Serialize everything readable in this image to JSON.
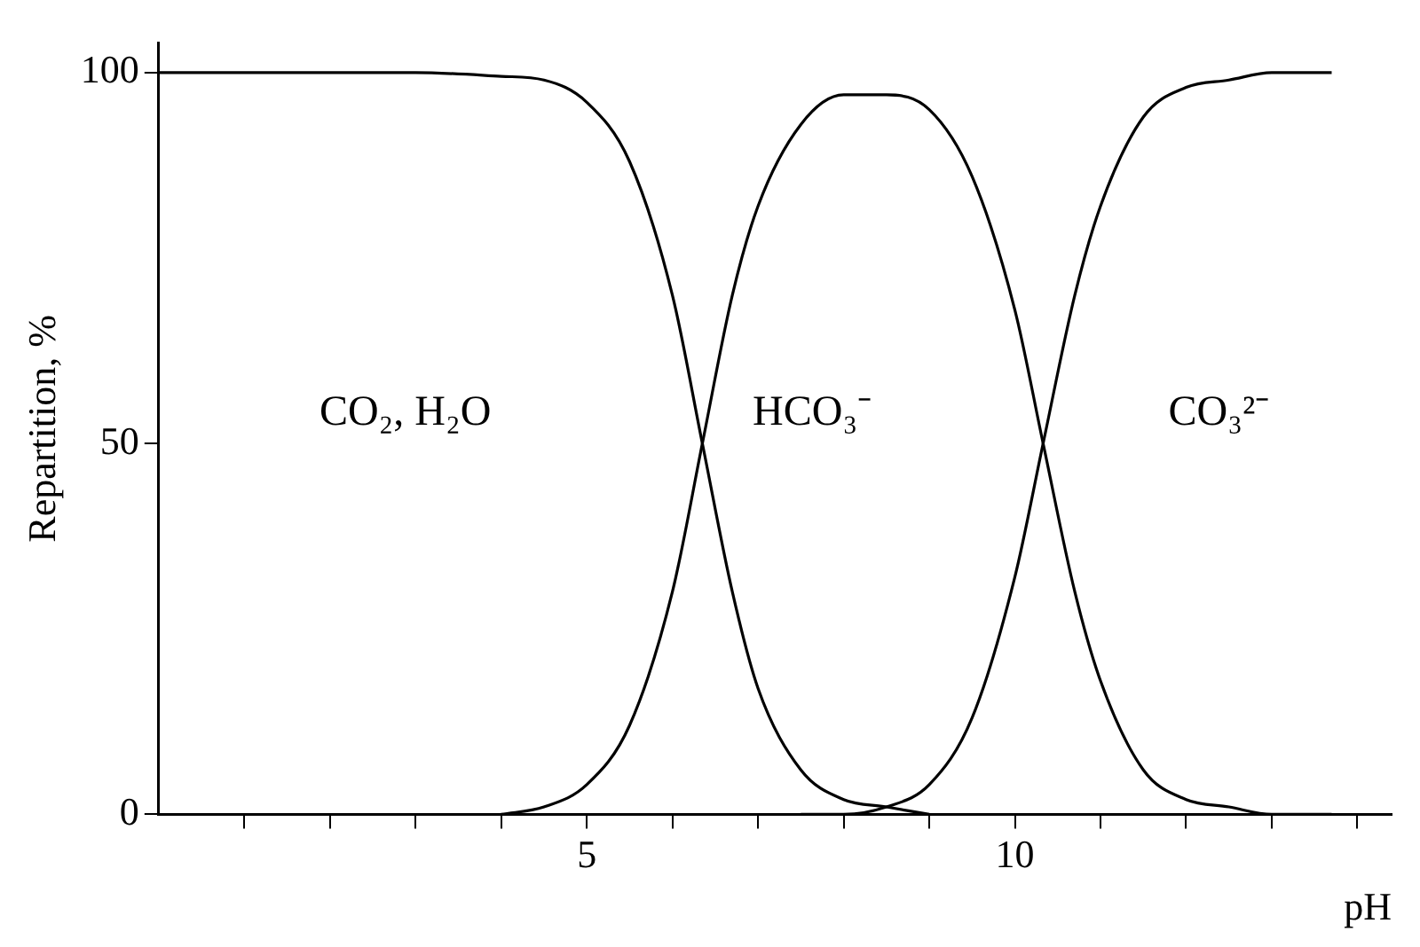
{
  "chart_data": {
    "type": "line",
    "xlabel": "pH",
    "ylabel": "Repartition, %",
    "xlim": [
      0,
      14.4
    ],
    "ylim": [
      0,
      104
    ],
    "xticks": [
      {
        "value": 1,
        "label": null
      },
      {
        "value": 2,
        "label": null
      },
      {
        "value": 3,
        "label": null
      },
      {
        "value": 4,
        "label": null
      },
      5,
      {
        "value": 6,
        "label": null
      },
      {
        "value": 7,
        "label": null
      },
      {
        "value": 8,
        "label": null
      },
      {
        "value": 9,
        "label": null
      },
      10,
      {
        "value": 11,
        "label": null
      },
      {
        "value": 12,
        "label": null
      },
      {
        "value": 13,
        "label": null
      },
      {
        "value": 14,
        "label": null
      }
    ],
    "yticks": [
      0,
      50,
      100
    ],
    "grid": false,
    "legend": false,
    "marker": "none",
    "line_style": "solid",
    "series": [
      {
        "color": "#000000",
        "x": [
          0,
          1,
          2,
          3,
          4,
          4.5,
          5,
          5.5,
          6,
          6.35,
          6.7,
          7,
          7.5,
          8,
          8.5,
          9
        ],
        "values": [
          100,
          100,
          100,
          100,
          99.5,
          99,
          96,
          88,
          70,
          50,
          30,
          17,
          6,
          2,
          1,
          0
        ]
      },
      {
        "color": "#000000",
        "x": [
          4,
          4.5,
          5,
          5.5,
          6,
          6.35,
          6.7,
          7,
          7.5,
          8,
          8.5,
          9,
          9.5,
          10,
          10.33,
          10.7,
          11,
          11.5,
          12,
          12.5,
          13,
          13.7
        ],
        "values": [
          0,
          1,
          4,
          12,
          30,
          50,
          70,
          82,
          93,
          97,
          97,
          95,
          86,
          68,
          50,
          30,
          18,
          6,
          2,
          1,
          0,
          0
        ]
      },
      {
        "color": "#000000",
        "x": [
          7.5,
          8,
          8.5,
          9,
          9.5,
          10,
          10.33,
          10.7,
          11,
          11.5,
          12,
          12.5,
          13,
          13.7
        ],
        "values": [
          0,
          0,
          1,
          4,
          13,
          32,
          50,
          70,
          82,
          94,
          98,
          99,
          100,
          100
        ]
      }
    ],
    "annotations": [
      "CO₂, H₂O",
      "HCO₃⁻",
      "CO₃²⁻"
    ]
  }
}
